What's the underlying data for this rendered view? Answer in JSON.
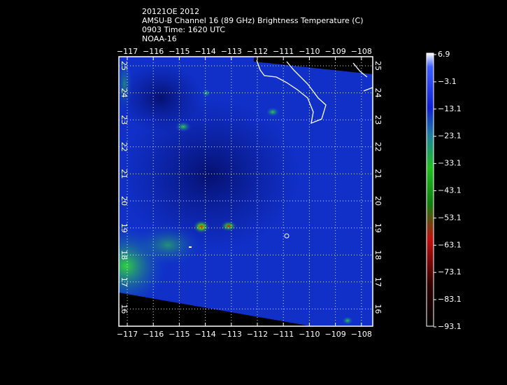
{
  "header": {
    "lines": [
      "20121OE 2012",
      "AMSU-B Channel 16 (89 GHz) Brightness Temperature (C)",
      "0903 Time: 1620 UTC",
      "NOAA-16"
    ]
  },
  "map": {
    "longitude_labels": [
      "−117",
      "−116",
      "−115",
      "−114",
      "−113",
      "−112",
      "−111",
      "−110",
      "−109",
      "−108"
    ],
    "latitude_labels": [
      "25",
      "24",
      "23",
      "22",
      "21",
      "20",
      "19",
      "18",
      "17",
      "16"
    ]
  },
  "colorbar": {
    "labels": [
      "6.9",
      "−3.1",
      "−13.1",
      "−23.1",
      "−33.1",
      "−43.1",
      "−53.1",
      "−63.1",
      "−73.1",
      "−83.1",
      "−93.1"
    ]
  }
}
